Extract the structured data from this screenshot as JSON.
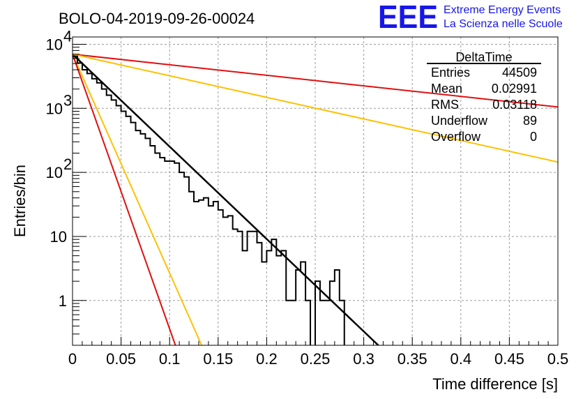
{
  "chart_data": {
    "type": "line",
    "title": "BOLO-04-2019-09-26-00024",
    "xlabel": "Time difference [s]",
    "ylabel": "Entries/bin",
    "xlim": [
      0,
      0.5
    ],
    "ylim": [
      0.2,
      13000
    ],
    "yscale": "log",
    "grid": true,
    "x_ticks": [
      "0",
      "0.05",
      "0.1",
      "0.15",
      "0.2",
      "0.25",
      "0.3",
      "0.35",
      "0.4",
      "0.45",
      "0.5"
    ],
    "y_ticks": [
      {
        "value": 10000,
        "label": "10",
        "exp": "4"
      },
      {
        "value": 1000,
        "label": "10",
        "exp": "3"
      },
      {
        "value": 100,
        "label": "10",
        "exp": "2"
      },
      {
        "value": 10,
        "label": "10",
        "exp": ""
      },
      {
        "value": 1,
        "label": "1",
        "exp": ""
      }
    ],
    "histogram": {
      "bin_width": 0.005,
      "values": [
        6500,
        5100,
        4000,
        3500,
        2900,
        2500,
        2000,
        1600,
        1350,
        1100,
        900,
        750,
        600,
        450,
        400,
        340,
        260,
        200,
        170,
        150,
        150,
        140,
        100,
        85,
        50,
        35,
        37,
        40,
        30,
        35,
        26,
        20,
        21,
        13,
        12,
        6,
        12,
        12,
        8,
        4,
        6,
        9,
        5,
        6,
        1,
        1,
        3,
        4,
        1,
        0.15,
        2,
        1,
        1,
        2,
        3,
        1,
        0.15,
        0.15,
        0.15,
        0.15,
        0.15,
        0.15,
        0.15,
        0.15,
        0.15,
        0.15,
        0.15,
        0.15,
        0.15,
        0.15,
        0.15,
        0.15,
        0.15,
        0.15,
        0.15,
        0.15
      ]
    },
    "series": [
      {
        "color": "#000000",
        "x": [
          0,
          0.315
        ],
        "y": [
          7000,
          0.2
        ]
      },
      {
        "color": "#e01010",
        "x": [
          0,
          0.5
        ],
        "y": [
          7000,
          1050
        ]
      },
      {
        "color": "#ffc000",
        "x": [
          0,
          0.5
        ],
        "y": [
          7000,
          145
        ]
      },
      {
        "color": "#ffc000",
        "x": [
          0,
          0.133
        ],
        "y": [
          7000,
          0.2
        ]
      },
      {
        "color": "#e01010",
        "x": [
          0,
          0.106
        ],
        "y": [
          7000,
          0.2
        ]
      }
    ]
  },
  "stats": {
    "title": "DeltaTime",
    "rows": [
      {
        "label": "Entries",
        "value": "44509"
      },
      {
        "label": "Mean",
        "value": "0.02991"
      },
      {
        "label": "RMS",
        "value": "0.03118"
      },
      {
        "label": "Underflow",
        "value": "89"
      },
      {
        "label": "Overflow",
        "value": "0"
      }
    ]
  },
  "logo": {
    "mark": "EEE",
    "line1": "Extreme Energy Events",
    "line2": "La Scienza nelle Scuole"
  }
}
